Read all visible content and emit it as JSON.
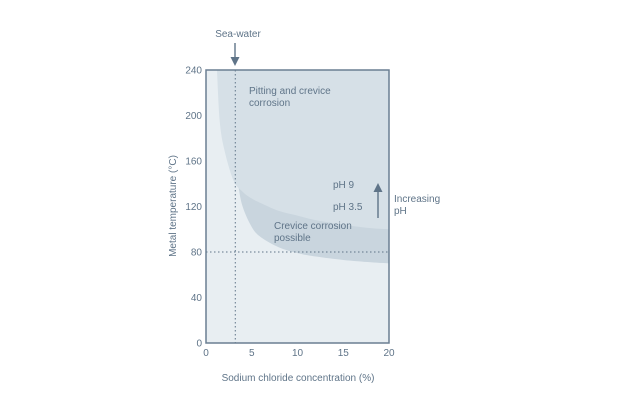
{
  "chart_data": {
    "type": "area",
    "xlabel": "Sodium chloride concentration (%)",
    "ylabel": "Metal temperature (°C)",
    "xlim": [
      0,
      20
    ],
    "ylim": [
      0,
      240
    ],
    "xticks": [
      "0",
      "5",
      "10",
      "15",
      "20"
    ],
    "yticks": [
      "0",
      "40",
      "80",
      "120",
      "160",
      "200",
      "240"
    ],
    "grid": false,
    "colors": {
      "plot_bg": "#e8eef2",
      "band": "#c9d5de",
      "upper": "#d6e0e7",
      "border": "#6a7f92",
      "text": "#5f7488"
    },
    "boundaries": [
      {
        "name": "upper",
        "x": [
          1.2,
          1.5,
          2,
          3,
          4,
          5,
          6,
          8,
          10,
          12,
          15,
          18,
          20
        ],
        "y": [
          240,
          195,
          170,
          143,
          133,
          127,
          123,
          116,
          112,
          108,
          104,
          101,
          100
        ]
      },
      {
        "name": "lower",
        "x": [
          2.6,
          2.8,
          3,
          3.5,
          4,
          5,
          6,
          8,
          10,
          12,
          15,
          18,
          20
        ],
        "y": [
          240,
          200,
          170,
          140,
          120,
          102,
          93,
          84,
          79,
          76,
          73,
          71,
          70
        ]
      }
    ],
    "reference_lines": [
      {
        "axis": "x",
        "value": 3.2,
        "label": "Sea-water"
      },
      {
        "axis": "y",
        "value": 80
      }
    ],
    "annotations": {
      "upper_region": [
        "Pitting and crevice",
        "corrosion"
      ],
      "band_region": [
        "Crevice corrosion",
        "possible"
      ],
      "ph_high": "pH 9",
      "ph_low": "pH 3.5",
      "arrow_label": [
        "Increasing",
        "pH"
      ]
    }
  }
}
